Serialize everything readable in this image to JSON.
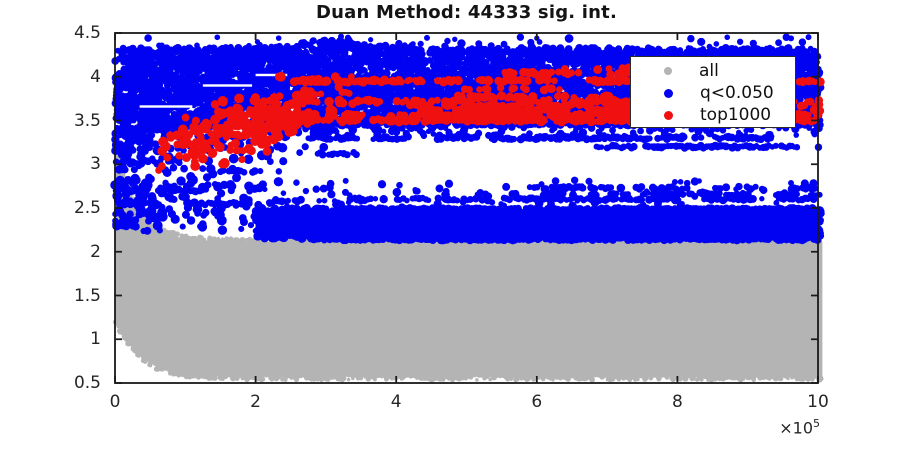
{
  "legend": {
    "items": [
      {
        "label": "all",
        "color": "#b4b4b4"
      },
      {
        "label": "q<0.050",
        "color": "#0202f2"
      },
      {
        "label": "top1000",
        "color": "#f01010"
      }
    ]
  },
  "axes": {
    "color": "#1a1a1a",
    "tick_label_color": "#262626",
    "x": {
      "labels": [
        "0",
        "2",
        "4",
        "6",
        "8",
        "10"
      ],
      "values": [
        0,
        2,
        4,
        6,
        8,
        10
      ],
      "multiplier_base": "×10",
      "multiplier_exp": "5"
    },
    "y": {
      "labels": [
        "0.5",
        "1",
        "1.5",
        "2",
        "2.5",
        "3",
        "3.5",
        "4",
        "4.5"
      ],
      "values": [
        0.5,
        1,
        1.5,
        2,
        2.5,
        3,
        3.5,
        4,
        4.5
      ]
    }
  },
  "chart_data": {
    "type": "scatter",
    "title": "Duan Method: 44333 sig. int.",
    "xlim": [
      0,
      1000000
    ],
    "ylim": [
      0.5,
      4.5
    ],
    "x_unit_scale": "1e5",
    "grid": false,
    "legend_position": "upper right",
    "series": [
      {
        "name": "all",
        "color": "#b4b4b4",
        "seed": 11,
        "description": "dense gray cloud: upper edge decays from ~3.25 at x=0 to ~2.1 by x=1e5 then flat; lower edge decays from ~1.2 at x=0 to ~0.56",
        "fills": [
          {
            "x": [
              0,
              10.05
            ],
            "top": {
              "base": 2.11,
              "amp": 1.16,
              "decay": 0.3
            },
            "bot": {
              "base": 0.565,
              "amp": 0.66,
              "decay": 0.35
            },
            "jitter": 0.02
          }
        ],
        "edge_dots": [
          {
            "n": 900,
            "edge": "top",
            "r": 2.2,
            "jit": 0.035
          },
          {
            "n": 650,
            "edge": "bot",
            "r": 2.2,
            "jit": 0.03
          }
        ]
      },
      {
        "name": "q<0.050",
        "color": "#0202f2",
        "seed": 23,
        "description": "dense blue band 3.45-4.35 across full width; sparse scatter 2.2-3.4 for x<3.3e5; dense band 2.13-2.5 for x>2.9e5; long horizontal streaks",
        "bands": [
          {
            "n": 6500,
            "x": [
              0,
              10.04
            ],
            "top": {
              "base": 4.33,
              "bump": {
                "c": 3.1,
                "w": 0.45,
                "h": 0.1
              }
            },
            "bot": {
              "base": 3.44,
              "amp": -0.14,
              "decay": 0.5
            },
            "r": 3.4
          }
        ],
        "blobs": [
          {
            "n": 260,
            "x": [
              0,
              10.04
            ],
            "y": [
              3.3,
              3.48
            ],
            "r": 3.5
          },
          {
            "n": 45,
            "x": [
              0,
              10.0
            ],
            "y": [
              4.34,
              4.46
            ],
            "r": 3.5
          },
          {
            "n": 300,
            "xexp": {
              "min": 0,
              "mean": 1.0,
              "max": 3.3
            },
            "y": [
              2.22,
              3.42
            ],
            "r": 4
          },
          {
            "n": 5200,
            "x": [
              2.88,
              10.04
            ],
            "y": [
              2.13,
              2.5
            ],
            "r": 3.4
          },
          {
            "n": 260,
            "x": [
              2.0,
              2.95
            ],
            "y": [
              2.15,
              2.5
            ],
            "r": 4
          },
          {
            "n": 90,
            "x": [
              2.1,
              10.0
            ],
            "y": [
              2.5,
              2.82
            ],
            "r": 3.5
          }
        ],
        "white_gaps": [
          {
            "y": 3.9,
            "x": [
              1.25,
              1.95
            ]
          },
          {
            "y": 3.66,
            "x": [
              0.35,
              1.1
            ]
          },
          {
            "y": 3.57,
            "x": [
              2.35,
              2.9
            ]
          },
          {
            "y": 4.02,
            "x": [
              2.0,
              2.45
            ]
          },
          {
            "y": 3.49,
            "x": [
              5.6,
              6.15
            ]
          }
        ],
        "streaks": [
          {
            "y": 2.55,
            "x": [
              0.07,
              1.95
            ],
            "r": 3.4,
            "cov": 0.9
          },
          {
            "y": 2.55,
            "x": [
              2.2,
              3.3
            ],
            "r": 3.4,
            "cov": 0.85
          },
          {
            "y": 2.7,
            "x": [
              0.02,
              1.3
            ],
            "r": 3.4,
            "cov": 0.9
          },
          {
            "y": 3.02,
            "x": [
              0.25,
              0.95
            ],
            "r": 3.4,
            "cov": 0.85
          },
          {
            "y": 2.92,
            "x": [
              1.5,
              2.1
            ],
            "r": 3.4,
            "cov": 0.7
          },
          {
            "y": 3.3,
            "x": [
              2.75,
              9.4
            ],
            "r": 3.4,
            "cov": 0.93
          },
          {
            "y": 3.2,
            "x": [
              6.85,
              10.04
            ],
            "r": 3.4,
            "cov": 0.93
          },
          {
            "y": 3.12,
            "x": [
              2.85,
              3.45
            ],
            "r": 3.4,
            "cov": 0.8
          },
          {
            "y": 2.6,
            "x": [
              3.35,
              10.04
            ],
            "r": 3.4,
            "cov": 0.85
          },
          {
            "y": 2.66,
            "x": [
              4.6,
              10.04
            ],
            "r": 3.4,
            "cov": 0.75
          },
          {
            "y": 2.73,
            "x": [
              5.9,
              10.04
            ],
            "r": 3.4,
            "cov": 0.7
          },
          {
            "y": 2.58,
            "x": [
              2.3,
              3.0
            ],
            "r": 3.4,
            "cov": 0.7
          }
        ]
      },
      {
        "name": "top1000",
        "color": "#f01010",
        "seed": 37,
        "description": "red cluster rising from ~3.1 at x=0.7e5 to ~3.8 at x=3.3e5, then horizontal streaks mainly 3.5-3.77 and 3.95-4.1 out to x=10e5",
        "cluster": {
          "n": 270,
          "xMean": 1.95,
          "xSig": 0.72,
          "xMin": 0.62,
          "xMax": 3.55,
          "yBase": 3.02,
          "ySlope": 0.23,
          "ySig": 0.16,
          "yMin": 2.93,
          "yMax": 4.0,
          "r": 4.3
        },
        "streaks": [
          {
            "y": 3.5,
            "x": [
              2.3,
              10.04
            ],
            "r": 4,
            "cov": 0.8
          },
          {
            "y": 3.56,
            "x": [
              3.05,
              10.04
            ],
            "r": 4,
            "cov": 0.75
          },
          {
            "y": 3.62,
            "x": [
              4.35,
              10.04
            ],
            "r": 4,
            "cov": 0.8
          },
          {
            "y": 3.67,
            "x": [
              4.2,
              10.04
            ],
            "r": 4,
            "cov": 0.7
          },
          {
            "y": 3.72,
            "x": [
              3.45,
              10.04
            ],
            "r": 4,
            "cov": 0.65
          },
          {
            "y": 3.77,
            "x": [
              4.85,
              9.2
            ],
            "r": 4,
            "cov": 0.6
          },
          {
            "y": 3.95,
            "x": [
              2.55,
              10.04
            ],
            "r": 4,
            "cov": 0.8
          },
          {
            "y": 4.04,
            "x": [
              5.5,
              9.5
            ],
            "r": 4,
            "cov": 0.7
          },
          {
            "y": 4.09,
            "x": [
              6.4,
              8.6
            ],
            "r": 4,
            "cov": 0.55
          },
          {
            "y": 3.86,
            "x": [
              4.9,
              6.4
            ],
            "r": 4,
            "cov": 0.5
          },
          {
            "y": 3.81,
            "x": [
              2.85,
              3.7
            ],
            "r": 4,
            "cov": 0.5
          }
        ]
      }
    ]
  }
}
